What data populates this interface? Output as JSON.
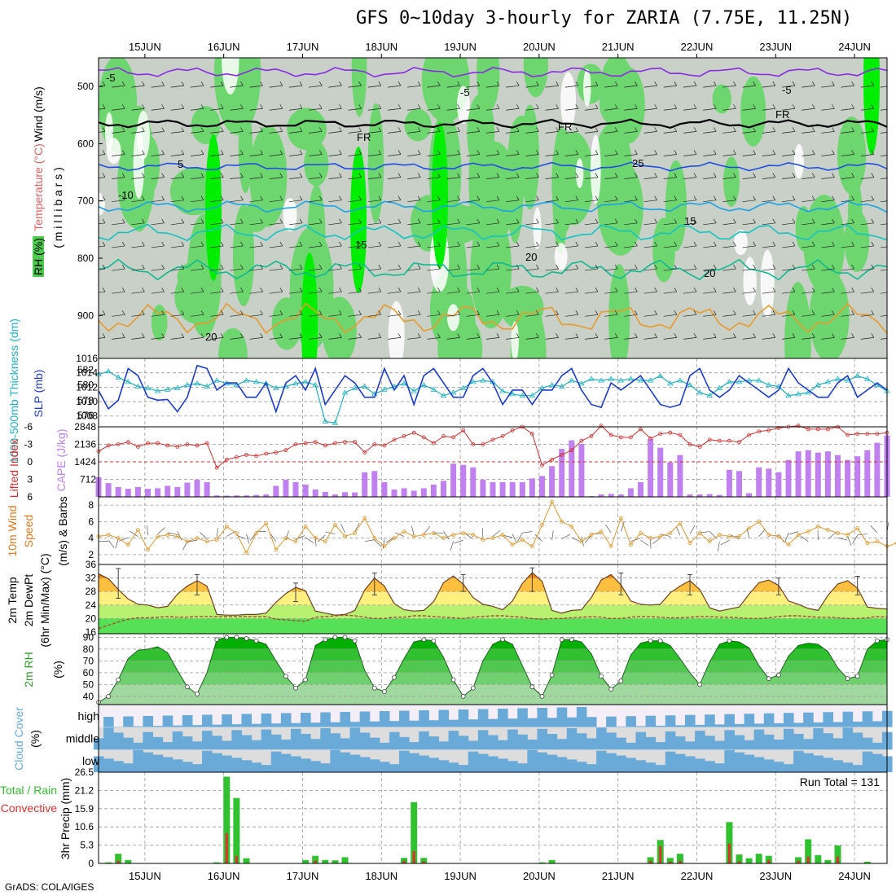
{
  "title": "GFS 0~10day 3-hourly for ZARIA (7.75E, 11.25N)",
  "credit": "GrADS: COLA/IGES",
  "dates": [
    "15JUN",
    "16JUN",
    "17JUN",
    "18JUN",
    "19JUN",
    "20JUN",
    "21JUN",
    "22JUN",
    "23JUN",
    "24JUN"
  ],
  "panels": {
    "upper_air": {
      "label_wind": "Wind (m/s)",
      "label_temp": "Temperature (°C)",
      "label_rh": "RH (%)",
      "label_mb": "( m i l l i b a r s )",
      "yticks": [
        "500",
        "600",
        "700",
        "800",
        "900"
      ],
      "contour_labels": [
        "-5",
        "-5",
        "FR",
        "FR",
        "FR",
        "-5",
        "5",
        "-10",
        "15",
        "15",
        "20",
        "20",
        "20",
        "25"
      ],
      "colors": {
        "dry": "#ffffff",
        "mid": "#c8d0c8",
        "moist": "#6ed66e",
        "sat": "#00ee00",
        "temp_cold": "#8a2be2",
        "freezing": "#000000",
        "temp5": "#1f4fe0",
        "temp10": "#1aa3e6",
        "temp15": "#14c4c0",
        "temp20": "#10b890",
        "temp25": "#e89a2c"
      }
    },
    "thickness_slp": {
      "label_thick": "1000-500mb Thickness (dm)",
      "label_slp": "SLP (mb)",
      "left_ticks": [
        "582",
        "580",
        "578",
        "576"
      ],
      "right_ticks": [
        "1016",
        "1014",
        "1012",
        "1010",
        "1008"
      ],
      "colors": {
        "thickness": "#20b0c0",
        "slp": "#1c3ccc"
      }
    },
    "cape_li": {
      "label_li": "Lifted Index",
      "label_cape": "CAPE (J/kg)",
      "left_ticks": [
        "-6",
        "-3",
        "0",
        "3",
        "6"
      ],
      "right_ticks": [
        "2848",
        "2136",
        "1424",
        "712"
      ],
      "colors": {
        "cape": "#c080f0",
        "li": "#d03030"
      }
    },
    "wind10m": {
      "label_a": "10m Wind",
      "label_b": "Speed",
      "label_c": "(m/s) & Barbs",
      "yticks": [
        "8",
        "6",
        "4",
        "2"
      ],
      "colors": {
        "speed": "#e09a30",
        "barbs": "#555555"
      }
    },
    "temp2m": {
      "label_a": "2m Temp",
      "label_b": "2m DewPt",
      "label_c": "(6hr Min/Max) (°C)",
      "yticks": [
        "36",
        "32",
        "28",
        "24",
        "20",
        "16"
      ],
      "colors": {
        "t16": "#55e055",
        "t20": "#b8f070",
        "t24": "#fff080",
        "t28": "#ffc040",
        "t32": "#ff8000",
        "t34": "#e04000",
        "dew": "#a05030"
      }
    },
    "rh2m": {
      "label_a": "2m RH",
      "label_b": "(%)",
      "yticks": [
        "90",
        "80",
        "70",
        "60",
        "50",
        "40"
      ],
      "colors": {
        "g1": "#a0d8a0",
        "g2": "#70d070",
        "g3": "#30c030",
        "g4": "#00b000"
      }
    },
    "cloud": {
      "label_a": "Cloud Cover",
      "label_b": "(%)",
      "rows": [
        "high",
        "middle",
        "low"
      ],
      "colors": {
        "cloud": "#6aaad8",
        "clear_high": "#f4eef6",
        "clear_low": "#dddddd"
      }
    },
    "precip": {
      "label_a": "Total / Rain",
      "label_b": "Convective",
      "label_c": "3hr Precip (mm)",
      "yticks": [
        "26.5",
        "21.2",
        "15.9",
        "10.6",
        "5.3",
        "0"
      ],
      "run_total": "Run Total =  131",
      "colors": {
        "total": "#30c030",
        "conv": "#e03030"
      }
    }
  },
  "chart_data": [
    {
      "type": "line",
      "title": "1000-500mb Thickness (dm) and SLP (mb)",
      "series": [
        {
          "name": "SLP (mb)",
          "values": [
            1011.5,
            1009.0,
            1010.2,
            1014.6,
            1013.6,
            1010.6,
            1010.2,
            1010.3,
            1008.6,
            1010.6,
            1015.0,
            1014.6,
            1011.6,
            1012.6,
            1012.6,
            1010.6,
            1010.6,
            1012.6,
            1008.6,
            1012.6,
            1013.6,
            1011.6,
            1014.6,
            1009.6,
            1011.6,
            1013.6,
            1012.6,
            1010.6,
            1010.6,
            1014.6,
            1011.6,
            1013.6,
            1009.6,
            1013.6,
            1014.6,
            1012.6,
            1010.6,
            1010.6,
            1013.6,
            1014.6,
            1012.6,
            1009.6,
            1011.6,
            1011.6,
            1009.6,
            1011.6,
            1011.6,
            1013.6,
            1014.6,
            1011.6,
            1009.6,
            1009.2,
            1012.6,
            1011.6,
            1012.6,
            1013.6,
            1011.6,
            1009.6,
            1009.2,
            1009.6,
            1013.6,
            1014.6,
            1011.6,
            1010.6,
            1011.6,
            1013.6,
            1012.6,
            1011.6,
            1010.6,
            1011.6,
            1014.6,
            1012.6,
            1011.6,
            1010.6,
            1010.6,
            1012.6,
            1013.6,
            1010.6,
            1011.6,
            1012.6,
            1011.6
          ]
        },
        {
          "name": "1000-500mb Thickness (dm)",
          "values": [
            581.4,
            581.8,
            581.0,
            580.4,
            579.8,
            579.6,
            579.2,
            579.4,
            579.6,
            580.0,
            580.2,
            579.8,
            580.6,
            580.2,
            580.0,
            580.6,
            580.4,
            580.2,
            579.6,
            579.8,
            580.2,
            580.4,
            580.0,
            575.2,
            575.0,
            579.0,
            579.6,
            579.8,
            578.8,
            579.4,
            579.8,
            580.2,
            579.2,
            580.0,
            579.4,
            578.6,
            579.0,
            579.6,
            580.4,
            580.6,
            580.4,
            579.2,
            578.8,
            578.6,
            578.6,
            579.6,
            580.0,
            579.8,
            580.6,
            580.2,
            580.8,
            580.6,
            580.8,
            580.6,
            580.8,
            580.6,
            580.6,
            581.2,
            580.2,
            580.6,
            580.0,
            579.0,
            578.6,
            579.6,
            580.4,
            580.4,
            580.6,
            580.6,
            580.0,
            579.8,
            578.6,
            578.8,
            579.0,
            580.0,
            580.4,
            580.8,
            580.6,
            581.2,
            580.8,
            580.0,
            579.2
          ]
        }
      ]
    },
    {
      "type": "bar",
      "title": "CAPE (J/kg) and Lifted Index",
      "series": [
        {
          "name": "CAPE (J/kg)",
          "values": [
            800,
            560,
            400,
            330,
            400,
            330,
            350,
            450,
            400,
            580,
            700,
            600,
            60,
            50,
            60,
            60,
            80,
            100,
            450,
            700,
            600,
            500,
            300,
            200,
            100,
            190,
            180,
            1000,
            1050,
            600,
            300,
            350,
            250,
            350,
            500,
            650,
            1350,
            1300,
            1200,
            700,
            600,
            600,
            600,
            600,
            750,
            850,
            1250,
            1950,
            2300,
            2150,
            30,
            100,
            120,
            100,
            350,
            600,
            2350,
            2000,
            1400,
            1700,
            100,
            100,
            110,
            80,
            1100,
            1050,
            150,
            1200,
            1150,
            1000,
            1500,
            1850,
            1900,
            1800,
            1850,
            1700,
            1500,
            1650,
            1900,
            2200,
            2500
          ]
        },
        {
          "name": "Lifted Index",
          "values": [
            -1.8,
            -2.8,
            -3.0,
            -3.4,
            -2.6,
            -3.2,
            -3.2,
            -2.8,
            -2.6,
            -3.0,
            -2.8,
            -3.2,
            1.0,
            -0.4,
            -0.8,
            -1.2,
            -1.0,
            -1.4,
            -1.6,
            -2.0,
            -3.0,
            -3.2,
            -3.4,
            -2.8,
            -3.2,
            -3.4,
            -3.4,
            -1.6,
            -3.0,
            -2.8,
            -3.8,
            -4.4,
            -5.0,
            -4.2,
            -3.2,
            -4.4,
            -4.2,
            -5.4,
            -3.0,
            -3.0,
            -3.8,
            -4.4,
            -5.4,
            -6.0,
            -4.8,
            0.6,
            -0.4,
            -1.2,
            -2.0,
            -3.6,
            -4.4,
            -6.2,
            -4.6,
            -4.2,
            -4.2,
            -5.6,
            -4.0,
            -4.8,
            -5.0,
            -4.6,
            -3.0,
            -2.6,
            -3.8,
            -3.6,
            -3.6,
            -3.4,
            -4.6,
            -5.2,
            -5.4,
            -5.8,
            -6.0,
            -6.2,
            -5.6,
            -5.6,
            -5.6,
            -6.0,
            -4.6,
            -4.8,
            -4.8,
            -4.8,
            -5.0
          ]
        }
      ]
    },
    {
      "type": "line",
      "title": "10m Wind Speed (m/s)",
      "series": [
        {
          "name": "10m Wind Speed (m/s)",
          "values": [
            4.2,
            4.4,
            4.0,
            3.2,
            5.0,
            2.6,
            4.2,
            4.4,
            4.2,
            3.6,
            4.0,
            3.6,
            3.8,
            5.4,
            4.6,
            2.2,
            4.6,
            5.8,
            2.6,
            4.0,
            3.6,
            5.4,
            4.0,
            3.6,
            5.6,
            4.2,
            4.6,
            6.4,
            4.0,
            3.0,
            4.0,
            4.8,
            4.2,
            4.4,
            4.6,
            4.0,
            4.4,
            4.6,
            4.4,
            3.8,
            4.0,
            4.4,
            3.2,
            3.8,
            3.0,
            5.6,
            8.4,
            6.0,
            5.4,
            3.6,
            4.4,
            4.8,
            3.0,
            6.4,
            3.2,
            4.6,
            4.0,
            4.2,
            4.6,
            5.8,
            3.4,
            4.6,
            3.6,
            4.4,
            4.2,
            4.2,
            5.2,
            6.0,
            4.4,
            4.2,
            3.2,
            4.4,
            4.8,
            5.4,
            5.0,
            4.6,
            4.4,
            5.2,
            3.4,
            3.6,
            3.0,
            3.4,
            4.8
          ]
        }
      ]
    },
    {
      "type": "area",
      "title": "2m Temp and 2m DewPt (°C)",
      "series": [
        {
          "name": "2m Temp (°C)",
          "values": [
            33.2,
            31.8,
            28.6,
            25.8,
            24.2,
            24.0,
            23.2,
            23.6,
            27.2,
            29.6,
            31.2,
            29.6,
            21.2,
            21.0,
            21.0,
            21.2,
            21.2,
            21.6,
            24.8,
            27.4,
            29.2,
            28.2,
            22.2,
            21.6,
            21.0,
            21.2,
            22.4,
            28.4,
            32.0,
            29.6,
            24.4,
            22.6,
            22.2,
            22.4,
            25.0,
            30.6,
            32.6,
            30.2,
            26.2,
            24.2,
            23.6,
            22.6,
            25.2,
            30.4,
            33.6,
            31.0,
            22.4,
            21.6,
            22.4,
            22.6,
            26.2,
            31.4,
            33.0,
            30.0,
            25.2,
            24.2,
            24.0,
            24.2,
            27.6,
            29.6,
            31.2,
            28.6,
            23.2,
            22.2,
            22.8,
            23.4,
            27.2,
            30.6,
            31.4,
            29.8,
            25.2,
            24.2,
            23.0,
            22.4,
            26.8,
            30.2,
            31.2,
            29.0,
            23.4,
            23.0,
            22.8
          ]
        },
        {
          "name": "2m DewPt (°C)",
          "values": [
            17.0,
            18.0,
            19.0,
            19.8,
            20.2,
            20.2,
            20.4,
            20.6,
            20.4,
            20.4,
            20.6,
            20.6,
            20.6,
            20.6,
            20.6,
            20.6,
            20.6,
            20.6,
            19.8,
            19.6,
            19.4,
            19.2,
            20.4,
            20.6,
            20.8,
            21.0,
            20.8,
            20.4,
            20.0,
            20.0,
            20.4,
            20.4,
            20.8,
            20.8,
            20.6,
            20.4,
            20.2,
            20.0,
            20.4,
            20.6,
            20.8,
            20.8,
            20.6,
            20.4,
            20.0,
            19.8,
            20.0,
            20.0,
            20.2,
            20.4,
            20.6,
            20.4,
            20.0,
            20.0,
            20.4,
            20.6,
            20.6,
            20.4,
            20.2,
            20.2,
            20.4,
            20.6,
            20.6,
            20.4,
            20.4,
            20.2,
            20.0,
            20.0,
            20.2,
            20.6,
            20.8,
            20.8,
            20.6,
            20.4,
            20.4,
            20.2,
            20.0,
            20.0,
            20.2,
            20.6,
            20.4
          ]
        }
      ]
    },
    {
      "type": "area",
      "title": "2m RH (%)",
      "series": [
        {
          "name": "2m RH (%)",
          "values": [
            35,
            40,
            54,
            72,
            79,
            80,
            82,
            77,
            62,
            48,
            42,
            60,
            88,
            90,
            90,
            89,
            87,
            84,
            70,
            57,
            47,
            54,
            83,
            88,
            90,
            90,
            87,
            62,
            47,
            44,
            56,
            72,
            86,
            88,
            87,
            73,
            54,
            40,
            47,
            70,
            84,
            88,
            84,
            66,
            48,
            40,
            58,
            88,
            88,
            86,
            76,
            57,
            46,
            53,
            75,
            85,
            87,
            87,
            83,
            72,
            60,
            50,
            69,
            84,
            87,
            86,
            81,
            66,
            55,
            58,
            74,
            83,
            85,
            84,
            78,
            64,
            55,
            57,
            80,
            87,
            88
          ]
        }
      ]
    },
    {
      "type": "bar",
      "title": "3hr Precip (mm)",
      "xlabel": "",
      "ylabel": "3hr Precip (mm)",
      "ylim": [
        0,
        26.5
      ],
      "series": [
        {
          "name": "Total / Rain",
          "values": [
            0.0,
            0.3,
            2.8,
            1.0,
            0.0,
            0.0,
            0.0,
            0.0,
            0.0,
            0.0,
            0.0,
            0.0,
            0.3,
            25.2,
            19.0,
            1.5,
            0.0,
            0.0,
            0.0,
            0.0,
            0.0,
            1.0,
            2.2,
            1.0,
            0.9,
            1.8,
            0.0,
            0.0,
            0.0,
            0.0,
            0.0,
            1.6,
            17.8,
            1.6,
            0.0,
            0.0,
            0.0,
            0.0,
            0.0,
            0.0,
            0.0,
            0.0,
            0.0,
            0.0,
            0.0,
            0.3,
            1.0,
            0.0,
            0.0,
            0.0,
            0.0,
            0.0,
            0.0,
            0.0,
            0.0,
            0.0,
            1.8,
            6.8,
            1.6,
            2.8,
            0.0,
            0.0,
            0.0,
            0.0,
            12.0,
            2.6,
            1.5,
            2.8,
            2.2,
            0.0,
            0.0,
            1.8,
            7.0,
            2.4,
            1.0,
            5.2,
            0.0,
            0.0,
            0.5,
            0.0,
            0.0
          ]
        },
        {
          "name": "Convective",
          "values": [
            0.0,
            0.0,
            0.8,
            0.0,
            0.0,
            0.0,
            0.0,
            0.0,
            0.0,
            0.0,
            0.0,
            0.0,
            0.0,
            8.8,
            2.2,
            0.0,
            0.0,
            0.0,
            0.0,
            0.0,
            0.0,
            0.0,
            0.8,
            0.0,
            0.0,
            0.0,
            0.0,
            0.0,
            0.0,
            0.0,
            0.0,
            0.8,
            3.6,
            0.6,
            0.0,
            0.0,
            0.0,
            0.0,
            0.0,
            0.0,
            0.0,
            0.0,
            0.0,
            0.0,
            0.0,
            0.0,
            0.0,
            0.0,
            0.0,
            0.0,
            0.0,
            0.0,
            0.0,
            0.0,
            0.0,
            0.0,
            0.8,
            5.0,
            0.5,
            0.8,
            0.0,
            0.0,
            0.0,
            0.0,
            5.8,
            0.6,
            0.0,
            0.0,
            1.0,
            0.0,
            0.0,
            0.8,
            2.0,
            0.0,
            0.0,
            2.0,
            0.0,
            0.0,
            0.0,
            0.0,
            0.0
          ]
        }
      ]
    }
  ]
}
